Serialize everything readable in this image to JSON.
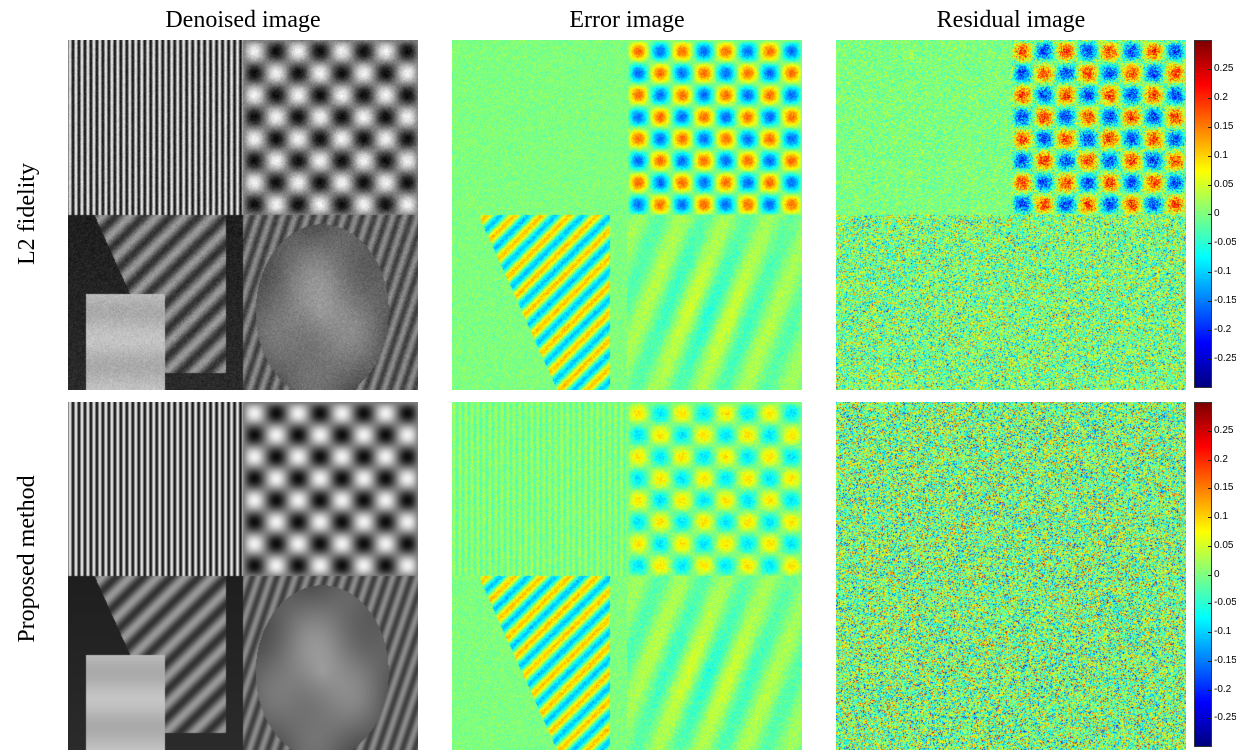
{
  "columns": {
    "denoised": "Denoised image",
    "error": "Error image",
    "residual": "Residual image"
  },
  "rows": {
    "l2": "L2 fidelity",
    "proposed": "Proposed method"
  },
  "colorbar": {
    "colormap": "jet",
    "range": [
      -0.3,
      0.3
    ],
    "ticks": [
      "0.25",
      "0.2",
      "0.15",
      "0.1",
      "0.05",
      "0",
      "-0.05",
      "-0.1",
      "-0.15",
      "-0.2",
      "-0.25"
    ]
  }
}
